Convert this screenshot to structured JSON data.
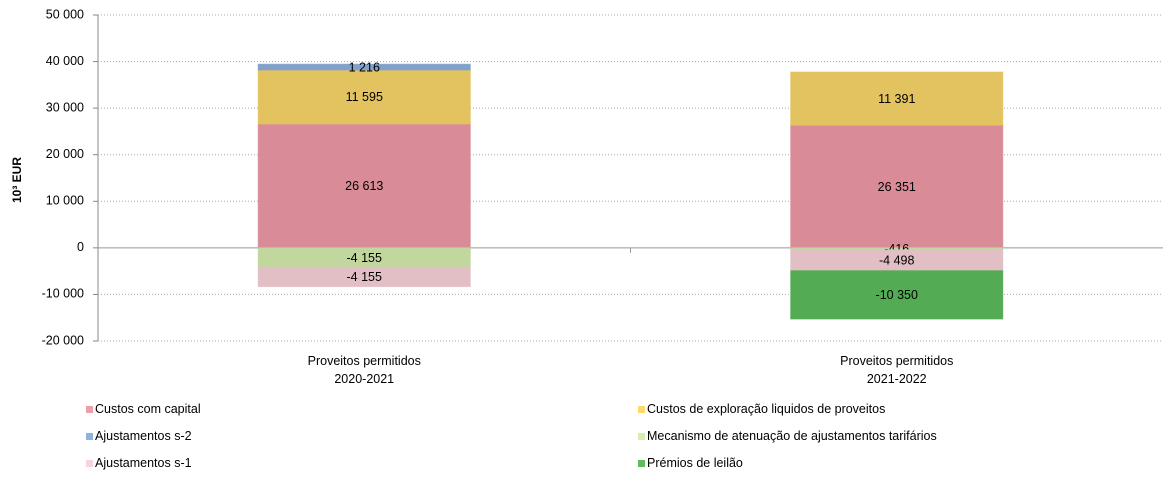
{
  "chart_data": {
    "type": "stacked-bar",
    "ylabel": "10³ EUR",
    "categories": [
      "Proveitos permitidos\n2020-2021",
      "Proveitos permitidos\n2021-2022"
    ],
    "ylim": [
      -20000,
      50000
    ],
    "yticks": [
      {
        "value": -20000,
        "label": "-20 000"
      },
      {
        "value": -10000,
        "label": "-10 000"
      },
      0,
      {
        "value": 10000,
        "label": "10 000"
      },
      {
        "value": 20000,
        "label": "20 000"
      },
      {
        "value": 30000,
        "label": "30 000"
      },
      {
        "value": 40000,
        "label": "40 000"
      },
      {
        "value": 50000,
        "label": "50 000"
      }
    ],
    "grid": true,
    "series": [
      {
        "name": "Custos com capital",
        "color": "#f19ca9",
        "values": [
          26613,
          26351
        ],
        "value_labels": [
          "26 613",
          "26 351"
        ]
      },
      {
        "name": "Custos de exploração liquidos de proveitos",
        "color": "#fcd96a",
        "values": [
          11595,
          11391
        ],
        "value_labels": [
          "11 595",
          "11 391"
        ]
      },
      {
        "name": "Ajustamentos s-2",
        "color": "#8fb3e0",
        "values": [
          1216,
          null
        ],
        "value_labels": [
          "1 216",
          null
        ]
      },
      {
        "name": "Mecanismo de atenuação de ajustamentos tarifários",
        "color": "#d6efae",
        "values": [
          -4155,
          -416
        ],
        "value_labels": [
          "-4 155",
          "-416"
        ]
      },
      {
        "name": "Ajustamentos s-1",
        "color": "#fbd3db",
        "values": [
          -4155,
          -4498
        ],
        "value_labels": [
          "-4 155",
          "-4 498"
        ]
      },
      {
        "name": "Prémios de leilão",
        "color": "#5cbf5c",
        "values": [
          null,
          -10350
        ],
        "value_labels": [
          null,
          "-10 350"
        ]
      }
    ]
  }
}
